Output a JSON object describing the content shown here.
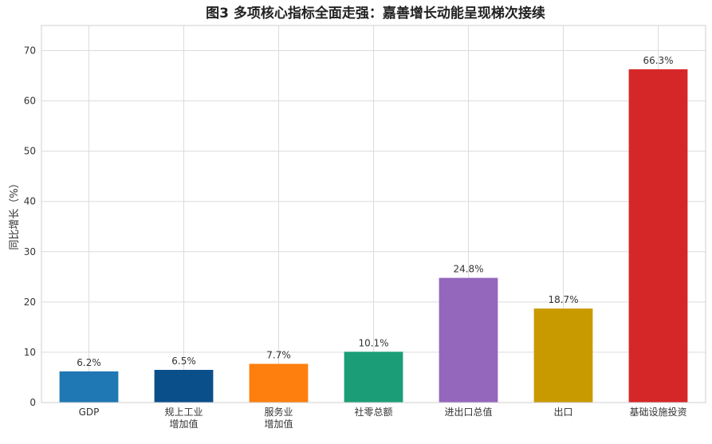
{
  "chart_data": {
    "type": "bar",
    "title": "图3  多项核心指标全面走强：嘉善增长动能呈现梯次接续",
    "xlabel": "",
    "ylabel": "同比增长（%）",
    "ylim": [
      0,
      75
    ],
    "yticks": [
      0,
      10,
      20,
      30,
      40,
      50,
      60,
      70
    ],
    "grid": true,
    "categories": [
      [
        "GDP"
      ],
      [
        "规上工业",
        "增加值"
      ],
      [
        "服务业",
        "增加值"
      ],
      [
        "社零总额"
      ],
      [
        "进出口总值"
      ],
      [
        "出口"
      ],
      [
        "基础设施投资"
      ]
    ],
    "values": [
      6.2,
      6.5,
      7.7,
      10.1,
      24.8,
      18.7,
      66.3
    ],
    "data_labels": [
      "6.2%",
      "6.5%",
      "7.7%",
      "10.1%",
      "24.8%",
      "18.7%",
      "66.3%"
    ],
    "colors": [
      "#1f77b4",
      "#0b4f8a",
      "#ff7f0e",
      "#1b9e77",
      "#9467bd",
      "#c99a00",
      "#d62728"
    ]
  }
}
